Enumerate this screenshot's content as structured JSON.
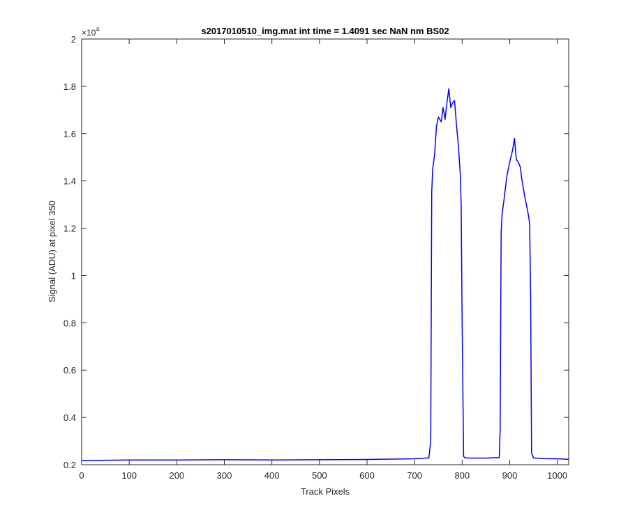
{
  "chart_data": {
    "type": "line",
    "title": "s2017010510_img.mat int time = 1.4091 sec  NaN nm BS02",
    "xlabel": "Track Pixels",
    "ylabel": "Signal (ADU) at pixel 350",
    "xlim": [
      0,
      1024
    ],
    "ylim": [
      2000,
      20000
    ],
    "x_ticks": [
      0,
      100,
      200,
      300,
      400,
      500,
      600,
      700,
      800,
      900,
      1000
    ],
    "x_tick_labels": [
      "0",
      "100",
      "200",
      "300",
      "400",
      "500",
      "600",
      "700",
      "800",
      "900",
      "1000"
    ],
    "y_ticks": [
      2000,
      4000,
      6000,
      8000,
      10000,
      12000,
      14000,
      16000,
      18000,
      20000
    ],
    "y_tick_labels": [
      "0.2",
      "0.4",
      "0.6",
      "0.8",
      "1",
      "1.2",
      "1.4",
      "1.6",
      "1.8",
      "2"
    ],
    "y_exponent_label": "×10",
    "y_exponent_power": "4",
    "grid": false,
    "legend": "none",
    "series": [
      {
        "color": "#0000ff",
        "x": [
          0,
          50,
          100,
          200,
          300,
          400,
          500,
          600,
          700,
          730,
          734,
          736,
          738,
          742,
          746,
          750,
          756,
          760,
          764,
          768,
          772,
          776,
          780,
          784,
          788,
          792,
          796,
          798,
          800,
          803,
          806,
          820,
          850,
          878,
          880,
          882,
          884,
          888,
          894,
          900,
          906,
          910,
          914,
          918,
          922,
          926,
          932,
          938,
          942,
          944,
          946,
          950,
          970,
          1000,
          1024
        ],
        "y": [
          2170,
          2190,
          2200,
          2200,
          2210,
          2200,
          2210,
          2220,
          2250,
          2290,
          3000,
          13500,
          14500,
          15100,
          16300,
          16700,
          16500,
          17100,
          16600,
          17300,
          17900,
          17100,
          17300,
          17400,
          16400,
          15500,
          14300,
          13000,
          8000,
          2350,
          2290,
          2280,
          2280,
          2300,
          3500,
          11800,
          12600,
          13200,
          14200,
          14800,
          15300,
          15800,
          14900,
          14800,
          14600,
          14000,
          13300,
          12700,
          12200,
          9000,
          2500,
          2290,
          2260,
          2250,
          2230
        ]
      }
    ]
  }
}
